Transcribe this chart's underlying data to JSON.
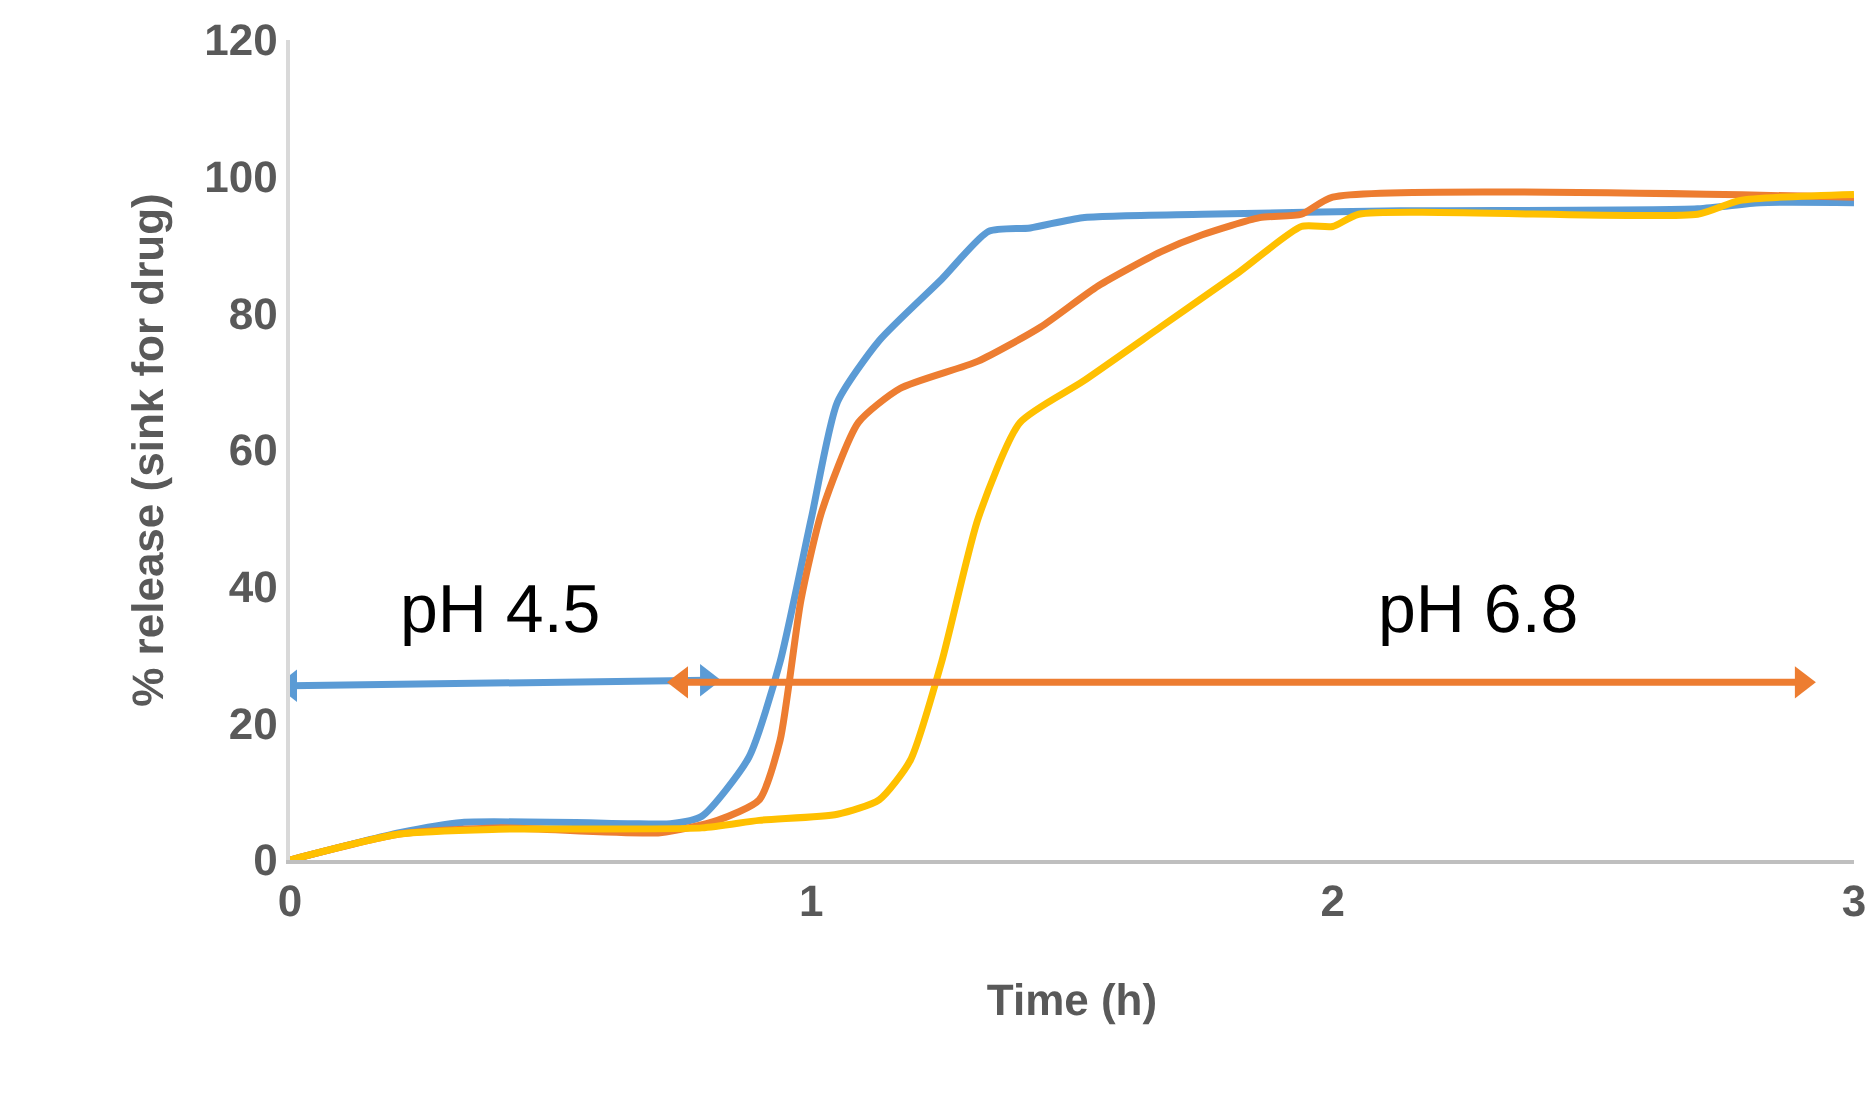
{
  "chart_data": {
    "type": "line",
    "xlabel": "Time (h)",
    "ylabel": "% release (sink for drug)",
    "xlim": [
      0,
      3
    ],
    "xticks": [
      0,
      1,
      2,
      3
    ],
    "ylim": [
      0,
      120
    ],
    "yticks": [
      0,
      20,
      40,
      60,
      80,
      100,
      120
    ],
    "grid": false,
    "marker": "none",
    "line_style": "solid",
    "series": [
      {
        "color": "#5b9bd5",
        "x": [
          0,
          0.21,
          0.33,
          0.67,
          0.73,
          0.79,
          0.88,
          0.94,
          1.0,
          1.05,
          1.13,
          1.25,
          1.34,
          1.42,
          1.52,
          1.75,
          2.13,
          2.7,
          2.82,
          3
        ],
        "values": [
          0,
          4,
          5.5,
          5.3,
          5.3,
          6.4,
          15,
          29,
          50,
          67,
          76,
          85,
          92,
          92.5,
          94,
          94.5,
          95,
          95.3,
          96.2,
          96.2
        ]
      },
      {
        "color": "#ed7d31",
        "x": [
          0,
          0.21,
          0.4,
          0.71,
          0.82,
          0.9,
          0.94,
          0.98,
          1.02,
          1.09,
          1.17,
          1.32,
          1.44,
          1.55,
          1.67,
          1.75,
          1.86,
          1.94,
          2.0,
          3
        ],
        "values": [
          0,
          3.8,
          4.7,
          4,
          5.8,
          8.8,
          17.5,
          38,
          51,
          64,
          69,
          73,
          78,
          84,
          89,
          91.5,
          94,
          94.5,
          97,
          97
        ]
      },
      {
        "color": "#ffc000",
        "x": [
          0,
          0.21,
          0.4,
          0.79,
          0.9,
          1.05,
          1.13,
          1.19,
          1.25,
          1.32,
          1.4,
          1.52,
          1.67,
          1.82,
          1.94,
          2.0,
          2.05,
          2.7,
          2.78,
          3
        ],
        "values": [
          0,
          3.8,
          4.5,
          4.7,
          5.8,
          6.7,
          8.8,
          14.6,
          29,
          50,
          64,
          70,
          78,
          86,
          92.7,
          92.7,
          94.5,
          94.5,
          96.5,
          97.4
        ]
      },
      {
        "type": "line",
        "marker": "triangle",
        "color": "#5b9bd5",
        "x": [
          0,
          0.8
        ],
        "values": [
          25.5,
          26.3
        ]
      },
      {
        "type": "line",
        "marker": "triangle",
        "color": "#ed7d31",
        "x": [
          0.75,
          2.9
        ],
        "values": [
          26,
          26
        ]
      }
    ],
    "annotations": [
      "pH 4.5",
      "pH 6.8"
    ]
  }
}
